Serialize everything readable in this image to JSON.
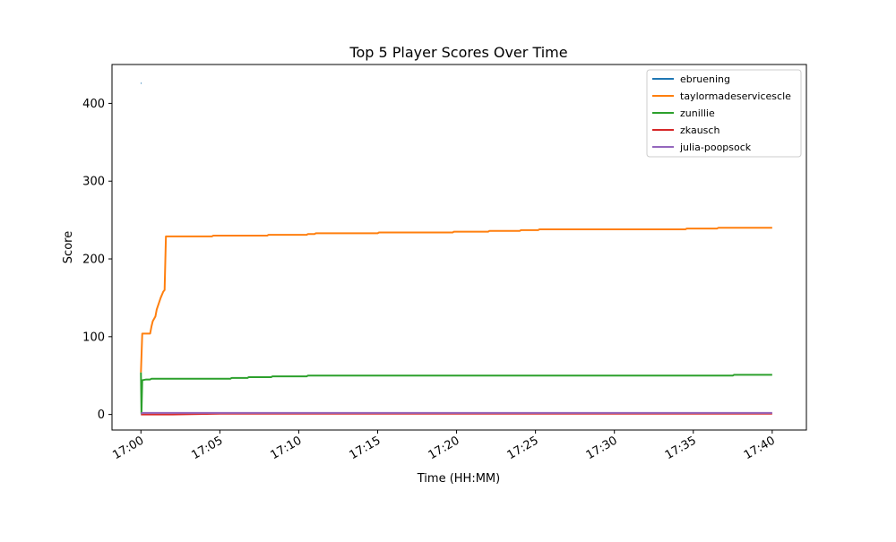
{
  "chart_data": {
    "type": "line",
    "title": "Top 5 Player Scores Over Time",
    "xlabel": "Time (HH:MM)",
    "ylabel": "Score",
    "x_ticks": [
      "17:00",
      "17:05",
      "17:10",
      "17:15",
      "17:20",
      "17:25",
      "17:30",
      "17:35",
      "17:40"
    ],
    "y_ticks": [
      0,
      100,
      200,
      300,
      400
    ],
    "xlim": [
      "16:58:10",
      "17:42:10"
    ],
    "ylim": [
      -20,
      450
    ],
    "legend_position": "top-right",
    "grid": false,
    "series": [
      {
        "name": "ebruening",
        "color": "#1f77b4",
        "points": [
          [
            "17:00:00",
            426
          ],
          [
            "17:00:02",
            426
          ]
        ]
      },
      {
        "name": "taylormadeservicescle",
        "color": "#ff7f0e",
        "points": [
          [
            "17:00:00",
            54
          ],
          [
            "17:00:05",
            104
          ],
          [
            "17:00:30",
            104
          ],
          [
            "17:00:35",
            104
          ],
          [
            "17:00:40",
            113
          ],
          [
            "17:00:45",
            120
          ],
          [
            "17:00:55",
            126
          ],
          [
            "17:01:00",
            135
          ],
          [
            "17:01:10",
            145
          ],
          [
            "17:01:15",
            150
          ],
          [
            "17:01:25",
            158
          ],
          [
            "17:01:30",
            160
          ],
          [
            "17:01:35",
            229
          ],
          [
            "17:04:30",
            229
          ],
          [
            "17:04:35",
            230
          ],
          [
            "17:08:00",
            230
          ],
          [
            "17:08:05",
            231
          ],
          [
            "17:10:30",
            231
          ],
          [
            "17:10:35",
            232
          ],
          [
            "17:11:00",
            232
          ],
          [
            "17:11:05",
            233
          ],
          [
            "17:15:00",
            233
          ],
          [
            "17:15:05",
            234
          ],
          [
            "17:19:45",
            234
          ],
          [
            "17:19:50",
            235
          ],
          [
            "17:22:00",
            235
          ],
          [
            "17:22:05",
            236
          ],
          [
            "17:24:00",
            236
          ],
          [
            "17:24:05",
            237
          ],
          [
            "17:25:10",
            237
          ],
          [
            "17:25:15",
            238
          ],
          [
            "17:34:30",
            238
          ],
          [
            "17:34:35",
            239
          ],
          [
            "17:36:30",
            239
          ],
          [
            "17:36:35",
            240
          ],
          [
            "17:40:00",
            240
          ]
        ]
      },
      {
        "name": "zunillie",
        "color": "#2ca02c",
        "points": [
          [
            "17:00:00",
            54
          ],
          [
            "17:00:02",
            1
          ],
          [
            "17:00:05",
            44
          ],
          [
            "17:00:20",
            45
          ],
          [
            "17:00:35",
            45
          ],
          [
            "17:00:40",
            46
          ],
          [
            "17:05:40",
            46
          ],
          [
            "17:05:45",
            47
          ],
          [
            "17:06:45",
            47
          ],
          [
            "17:06:50",
            48
          ],
          [
            "17:08:15",
            48
          ],
          [
            "17:08:20",
            49
          ],
          [
            "17:10:30",
            49
          ],
          [
            "17:10:35",
            50
          ],
          [
            "17:37:30",
            50
          ],
          [
            "17:37:35",
            51
          ],
          [
            "17:40:00",
            51
          ]
        ]
      },
      {
        "name": "zkausch",
        "color": "#d62728",
        "points": [
          [
            "17:00:00",
            0
          ],
          [
            "17:02:00",
            0
          ],
          [
            "17:05:00",
            1
          ],
          [
            "17:40:00",
            1
          ]
        ]
      },
      {
        "name": "julia-poopsock",
        "color": "#9467bd",
        "points": [
          [
            "17:00:00",
            1
          ],
          [
            "17:00:05",
            2
          ],
          [
            "17:40:00",
            2
          ]
        ]
      }
    ]
  }
}
